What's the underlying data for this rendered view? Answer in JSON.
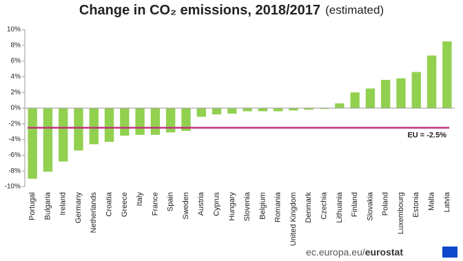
{
  "chart_data": {
    "type": "bar",
    "title": "Change in CO₂ emissions, 2018/2017",
    "subtitle": "(estimated)",
    "categories": [
      "Portugal",
      "Bulgaria",
      "Ireland",
      "Germany",
      "Netherlands",
      "Croatia",
      "Greece",
      "Italy",
      "France",
      "Spain",
      "Sweden",
      "Austria",
      "Cyprus",
      "Hungary",
      "Slovenia",
      "Belgium",
      "Romania",
      "United Kingdom",
      "Denmark",
      "Czechia",
      "Lithuania",
      "Finland",
      "Slovakia",
      "Poland",
      "Luxembourg",
      "Estonia",
      "Malta",
      "Latvia"
    ],
    "values": [
      -9.0,
      -8.1,
      -6.8,
      -5.4,
      -4.6,
      -4.3,
      -3.5,
      -3.4,
      -3.4,
      -3.1,
      -2.9,
      -1.1,
      -0.8,
      -0.7,
      -0.4,
      -0.4,
      -0.4,
      -0.3,
      -0.2,
      -0.1,
      0.6,
      2.0,
      2.5,
      3.6,
      3.8,
      4.6,
      6.7,
      8.5
    ],
    "color": "#92d050",
    "ylim": [
      -10,
      10
    ],
    "yticks": [
      {
        "value": -10,
        "label": "-10%"
      },
      {
        "value": -8,
        "label": "-8%"
      },
      {
        "value": -6,
        "label": "-6%"
      },
      {
        "value": -4,
        "label": "-4%"
      },
      {
        "value": -2,
        "label": "-2%"
      },
      {
        "value": 0,
        "label": "0%"
      },
      {
        "value": 2,
        "label": "2%"
      },
      {
        "value": 4,
        "label": "4%"
      },
      {
        "value": 6,
        "label": "6%"
      },
      {
        "value": 8,
        "label": "8%"
      },
      {
        "value": 10,
        "label": "10%"
      }
    ],
    "reference_line": {
      "value": -2.5,
      "label": "EU = -2.5%",
      "color": "#c0307a"
    },
    "source": "ec.europa.eu/",
    "source_brand": "eurostat"
  }
}
